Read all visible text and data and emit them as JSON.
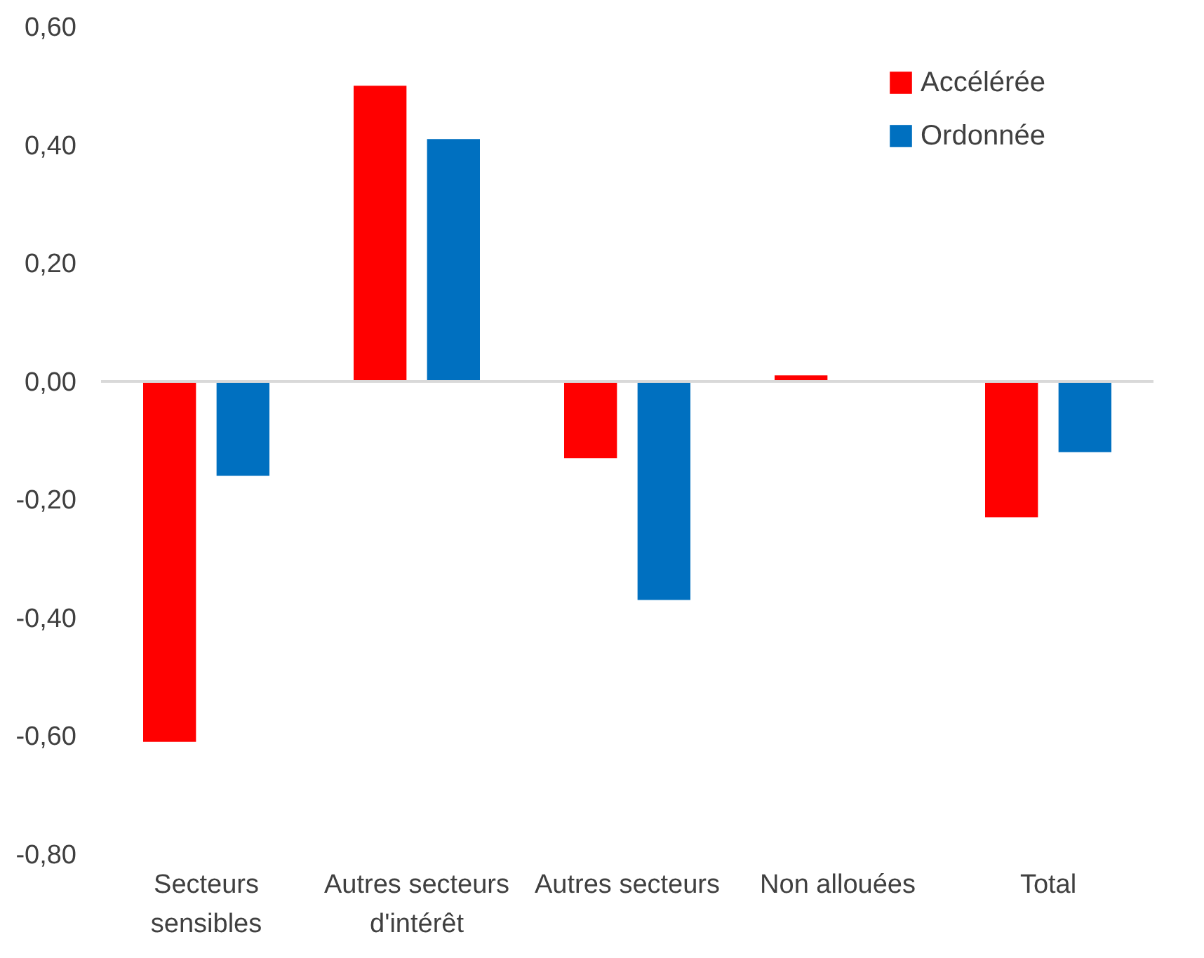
{
  "chart_data": {
    "type": "bar",
    "categories": [
      "Secteurs sensibles",
      "Autres secteurs d'intérêt",
      "Autres secteurs",
      "Non allouées",
      "Total"
    ],
    "series": [
      {
        "name": "Accélérée",
        "color": "#ff0000",
        "values": [
          -0.61,
          0.5,
          -0.13,
          0.01,
          -0.23
        ]
      },
      {
        "name": "Ordonnée",
        "color": "#0070c0",
        "values": [
          -0.16,
          0.41,
          -0.37,
          0.0,
          -0.12
        ]
      }
    ],
    "ylim": [
      -0.8,
      0.6
    ],
    "yticks": [
      {
        "value": -0.8,
        "label": "-0,80"
      },
      {
        "value": -0.6,
        "label": "-0,60"
      },
      {
        "value": -0.4,
        "label": "-0,40"
      },
      {
        "value": -0.2,
        "label": "-0,20"
      },
      {
        "value": 0,
        "label": "0,00"
      },
      {
        "value": 0.2,
        "label": "0,20"
      },
      {
        "value": 0.4,
        "label": "0,40"
      },
      {
        "value": 0.6,
        "label": "0,60"
      }
    ],
    "legend": "top right"
  }
}
